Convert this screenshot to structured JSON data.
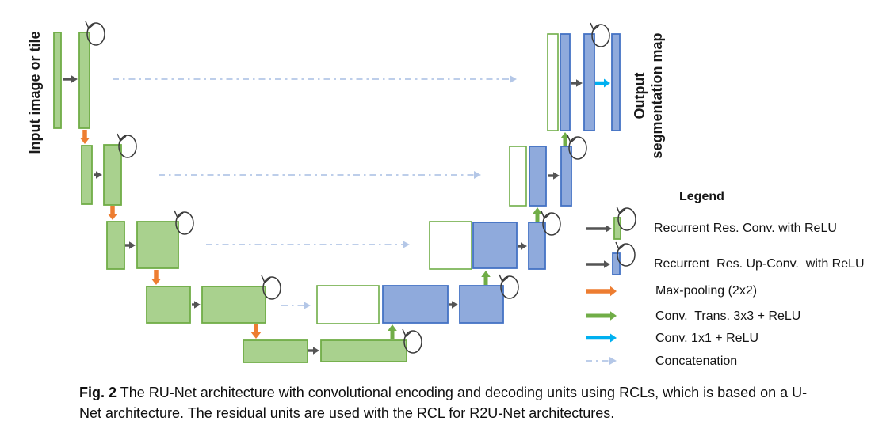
{
  "figure": {
    "input_label": "Input image or tile",
    "output_label_line1": "Output",
    "output_label_line2": "segmentation map"
  },
  "legend": {
    "title": "Legend",
    "items": [
      {
        "icon": "recurrent-res-conv-icon",
        "label": "Recurrent Res. Conv. with ReLU"
      },
      {
        "icon": "recurrent-res-up-conv-icon",
        "label": "Recurrent  Res. Up-Conv.  with ReLU"
      },
      {
        "icon": "max-pooling-arrow-icon",
        "label": "Max-pooling (2x2)"
      },
      {
        "icon": "conv-trans-arrow-icon",
        "label": "Conv.  Trans. 3x3 + ReLU"
      },
      {
        "icon": "conv-1x1-arrow-icon",
        "label": "Conv. 1x1 + ReLU"
      },
      {
        "icon": "concatenation-arrow-icon",
        "label": "Concatenation"
      }
    ]
  },
  "caption": {
    "label": "Fig. 2",
    "text": "The RU-Net architecture with convolutional encoding and decoding units using RCLs, which is based on a U-Net architecture. The residual units are used with the RCL for R2U-Net architectures."
  },
  "colors": {
    "green_fill": "#a9d18e",
    "green_border": "#70ad47",
    "blue_fill": "#8faadc",
    "blue_border": "#4472c4",
    "white_fill": "#ffffff",
    "arrow_dark": "#545454",
    "arrow_orange": "#ed7d31",
    "arrow_green": "#70ad47",
    "arrow_cyan": "#00b0f0",
    "arrow_concat": "#b4c7e7",
    "loop_stroke": "#3a3a3a",
    "text": "#111111"
  }
}
